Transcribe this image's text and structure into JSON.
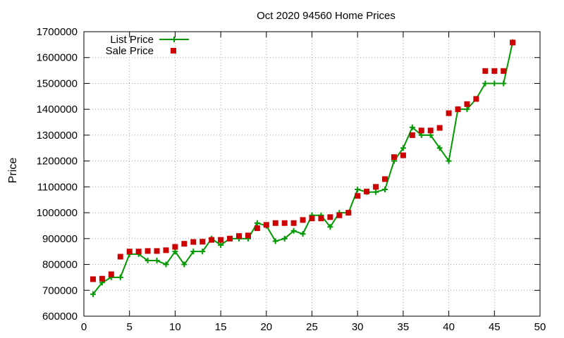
{
  "chart_data": {
    "type": "line",
    "title": "Oct 2020 94560 Home Prices",
    "xlabel": "",
    "ylabel": "Price",
    "xlim": [
      0,
      50
    ],
    "ylim": [
      600000,
      1700000
    ],
    "xticks": [
      0,
      5,
      10,
      15,
      20,
      25,
      30,
      35,
      40,
      45,
      50
    ],
    "yticks": [
      600000,
      700000,
      800000,
      900000,
      1000000,
      1100000,
      1200000,
      1300000,
      1400000,
      1500000,
      1600000,
      1700000
    ],
    "grid": true,
    "legend_position": "top-left",
    "series": [
      {
        "name": "List Price",
        "kind": "line-with-plus-markers",
        "color": "#009900",
        "x": [
          1,
          2,
          3,
          4,
          5,
          6,
          7,
          8,
          9,
          10,
          11,
          12,
          13,
          14,
          15,
          16,
          17,
          18,
          19,
          20,
          21,
          22,
          23,
          24,
          25,
          26,
          27,
          28,
          29,
          30,
          31,
          32,
          33,
          34,
          35,
          36,
          37,
          38,
          39,
          40,
          41,
          42,
          43,
          44,
          45,
          46,
          47
        ],
        "y": [
          685000,
          730000,
          750000,
          750000,
          840000,
          840000,
          815000,
          815000,
          800000,
          850000,
          800000,
          850000,
          850000,
          900000,
          875000,
          900000,
          900000,
          900000,
          960000,
          950000,
          890000,
          900000,
          930000,
          918000,
          990000,
          990000,
          945000,
          1000000,
          1000000,
          1090000,
          1080000,
          1080000,
          1090000,
          1200000,
          1250000,
          1330000,
          1300000,
          1300000,
          1250000,
          1200000,
          1400000,
          1400000,
          1440000,
          1500000,
          1500000,
          1500000,
          1660000
        ]
      },
      {
        "name": "Sale Price",
        "kind": "square-markers",
        "color": "#cc0000",
        "x": [
          1,
          2,
          3,
          4,
          5,
          6,
          7,
          8,
          9,
          10,
          11,
          12,
          13,
          14,
          15,
          16,
          17,
          18,
          19,
          20,
          21,
          22,
          23,
          24,
          25,
          26,
          27,
          28,
          29,
          30,
          31,
          32,
          33,
          34,
          35,
          36,
          37,
          38,
          39,
          40,
          41,
          42,
          43,
          44,
          45,
          46,
          47
        ],
        "y": [
          743000,
          745000,
          762000,
          830000,
          850000,
          850000,
          852000,
          852000,
          855000,
          868000,
          880000,
          887000,
          888000,
          895000,
          895000,
          900000,
          910000,
          912000,
          940000,
          953000,
          960000,
          960000,
          960000,
          972000,
          978000,
          978000,
          983000,
          990000,
          1000000,
          1065000,
          1082000,
          1100000,
          1130000,
          1215000,
          1222000,
          1300000,
          1318000,
          1318000,
          1328000,
          1385000,
          1400000,
          1420000,
          1440000,
          1548000,
          1548000,
          1548000,
          1658000
        ]
      }
    ]
  }
}
